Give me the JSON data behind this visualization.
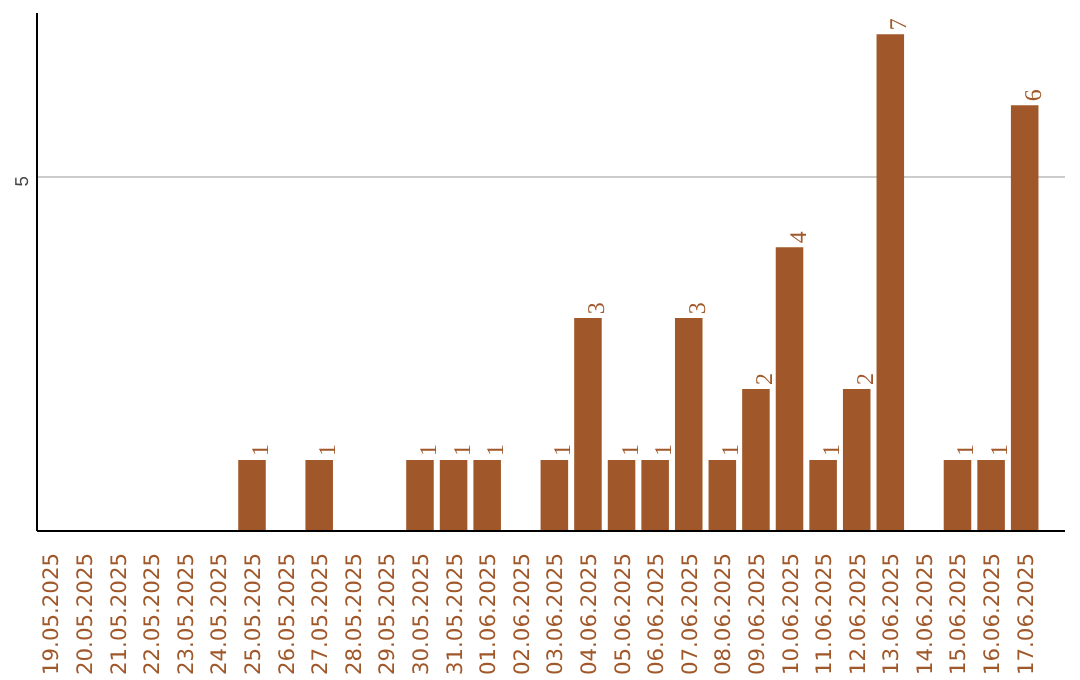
{
  "chart_data": {
    "type": "bar",
    "categories": [
      "19.05.2025",
      "20.05.2025",
      "21.05.2025",
      "22.05.2025",
      "23.05.2025",
      "24.05.2025",
      "25.05.2025",
      "26.05.2025",
      "27.05.2025",
      "28.05.2025",
      "29.05.2025",
      "30.05.2025",
      "31.05.2025",
      "01.06.2025",
      "02.06.2025",
      "03.06.2025",
      "04.06.2025",
      "05.06.2025",
      "06.06.2025",
      "07.06.2025",
      "08.06.2025",
      "09.06.2025",
      "10.06.2025",
      "11.06.2025",
      "12.06.2025",
      "13.06.2025",
      "14.06.2025",
      "15.06.2025",
      "16.06.2025",
      "17.06.2025"
    ],
    "values": [
      0,
      0,
      0,
      0,
      0,
      0,
      1,
      0,
      1,
      0,
      0,
      1,
      1,
      1,
      0,
      1,
      3,
      1,
      1,
      3,
      1,
      2,
      4,
      1,
      2,
      7,
      0,
      1,
      1,
      6
    ],
    "value_labels": [
      null,
      null,
      null,
      null,
      null,
      null,
      "1",
      null,
      "1",
      null,
      null,
      "1",
      "1",
      "1",
      null,
      "1",
      "3",
      "1",
      "1",
      "3",
      "1",
      "2",
      "4",
      "1",
      "2",
      "7",
      null,
      "1",
      "1",
      "6"
    ],
    "color": "#a0582a",
    "ylim": [
      0,
      7.3
    ],
    "yticks": [
      5
    ],
    "grid": "y"
  }
}
